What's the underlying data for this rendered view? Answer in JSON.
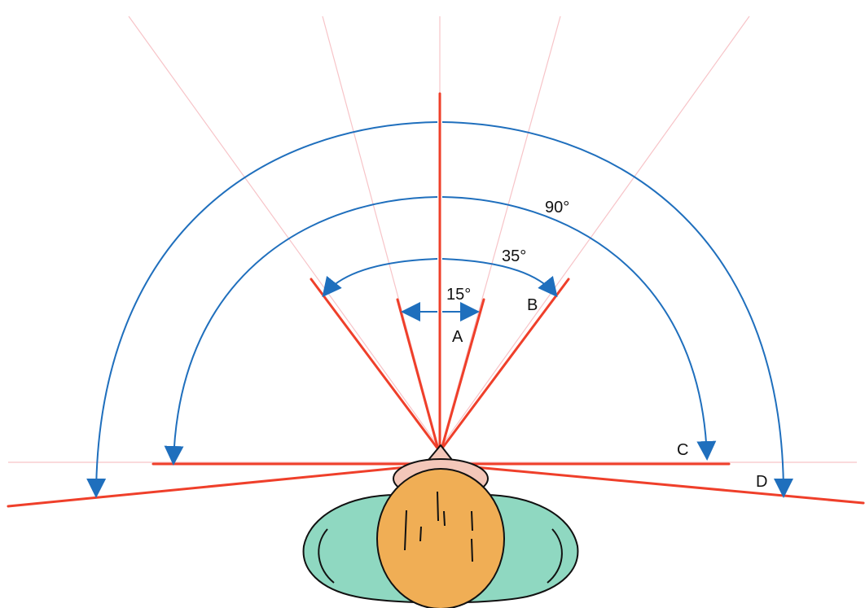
{
  "labels": {
    "angle_15": "15°",
    "angle_35": "35°",
    "angle_90": "90°",
    "zone_a": "A",
    "zone_b": "B",
    "zone_c": "C",
    "zone_d": "D"
  },
  "colors": {
    "ray": "#ef3f2a",
    "guide": "#f7c4c8",
    "arc": "#1f6fbd",
    "shoulders": "#8fd8c1",
    "head": "#f0ae55",
    "nose": "#f3c7b9",
    "outline": "#111111"
  }
}
